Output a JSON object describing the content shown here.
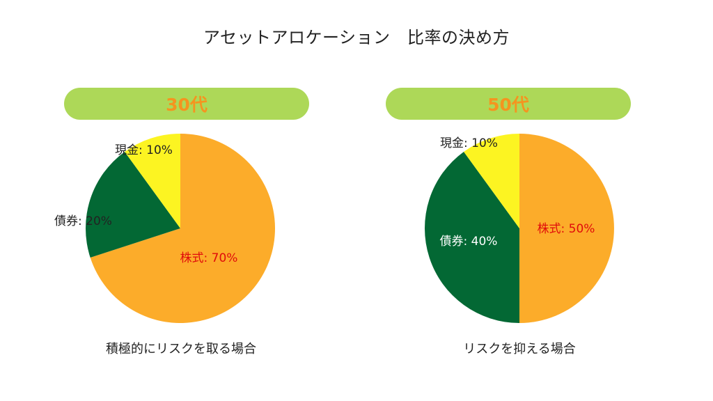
{
  "title": "アセットアロケーション　比率の決め方",
  "colors": {
    "badge_bg": "#add858",
    "badge_text": "#f5941f",
    "stocks": "#fcac2a",
    "bonds": "#036834",
    "cash": "#fcf422",
    "label_default": "#222222",
    "label_highlight": "#e00b0b",
    "label_on_dark": "#ffffff"
  },
  "chart_data": [
    {
      "type": "pie",
      "title": "30代",
      "caption": "積極的にリスクを取る場合",
      "start": "12 o'clock",
      "direction": "clockwise",
      "slices": [
        {
          "label": "株式",
          "value": 70,
          "text": "株式: 70%",
          "color": "#fcac2a",
          "label_color": "#e00b0b"
        },
        {
          "label": "債券",
          "value": 20,
          "text": "債券: 20%",
          "color": "#036834",
          "label_color": "#222222"
        },
        {
          "label": "現金",
          "value": 10,
          "text": "現金: 10%",
          "color": "#fcf422",
          "label_color": "#222222"
        }
      ]
    },
    {
      "type": "pie",
      "title": "50代",
      "caption": "リスクを抑える場合",
      "start": "12 o'clock",
      "direction": "clockwise",
      "slices": [
        {
          "label": "株式",
          "value": 50,
          "text": "株式: 50%",
          "color": "#fcac2a",
          "label_color": "#e00b0b"
        },
        {
          "label": "債券",
          "value": 40,
          "text": "債券: 40%",
          "color": "#036834",
          "label_color": "#ffffff"
        },
        {
          "label": "現金",
          "value": 10,
          "text": "現金: 10%",
          "color": "#fcf422",
          "label_color": "#222222"
        }
      ]
    }
  ]
}
